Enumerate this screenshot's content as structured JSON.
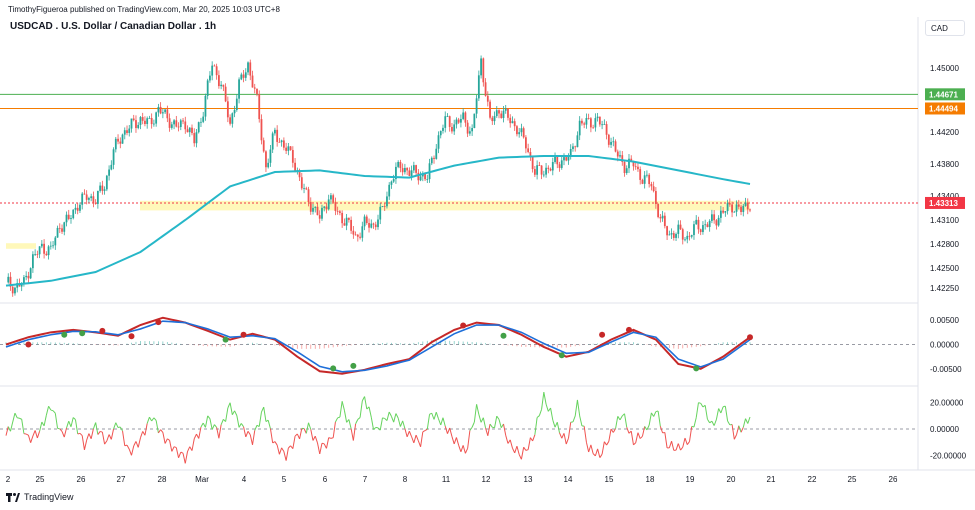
{
  "header": {
    "published_line": "TimothyFigueroa published on TradingView.com, Mar 20, 2025 10:03 UTC+8",
    "symbol_title": "USDCAD . U.S. Dollar / Canadian Dollar . 1h",
    "currency_button": "CAD"
  },
  "footer": {
    "brand": "TradingView"
  },
  "colors": {
    "up": "#26a69a",
    "down": "#ef5350",
    "ma": "#26b7c8",
    "green_level": "#4caf50",
    "orange_level": "#f57c00",
    "last_price": "#f23645",
    "osc_fast": "#c62828",
    "osc_slow": "#1e6fd9",
    "osc_cross_up": "#43a047",
    "osc_mid_hist_pos": "#26a69a",
    "osc_mid_hist_neg": "#ef5350"
  },
  "chart_data": [
    {
      "type": "candlestick",
      "title": "USDCAD . U.S. Dollar / Canadian Dollar . 1h",
      "x_ticks": [
        "2",
        "25",
        "26",
        "27",
        "28",
        "Mar",
        "4",
        "5",
        "6",
        "7",
        "8",
        "11",
        "12",
        "13",
        "14",
        "15",
        "18",
        "19",
        "20",
        "21",
        "22",
        "25",
        "26"
      ],
      "y_ticks": [
        "1.45000",
        "1.44200",
        "1.43800",
        "1.43400",
        "1.43100",
        "1.42800",
        "1.42500",
        "1.42250"
      ],
      "ylim": [
        1.421,
        1.4535
      ],
      "price_levels": [
        {
          "label": "1.44671",
          "value": 1.44671,
          "color": "#4caf50"
        },
        {
          "label": "1.44494",
          "value": 1.44494,
          "color": "#f57c00"
        },
        {
          "label": "1.43313",
          "value": 1.43313,
          "color": "#f23645"
        }
      ],
      "support_zone": [
        1.4322,
        1.4334
      ],
      "pattern_zone": [
        1.4274,
        1.4281
      ],
      "close_path": [
        [
          0,
          1.4232
        ],
        [
          4,
          1.4226
        ],
        [
          8,
          1.4231
        ],
        [
          12,
          1.4262
        ],
        [
          16,
          1.4276
        ],
        [
          20,
          1.4272
        ],
        [
          24,
          1.4303
        ],
        [
          28,
          1.431
        ],
        [
          32,
          1.433
        ],
        [
          36,
          1.4339
        ],
        [
          40,
          1.4336
        ],
        [
          44,
          1.4353
        ],
        [
          48,
          1.4396
        ],
        [
          52,
          1.4418
        ],
        [
          56,
          1.4428
        ],
        [
          60,
          1.4436
        ],
        [
          64,
          1.443
        ],
        [
          68,
          1.4448
        ],
        [
          72,
          1.4438
        ],
        [
          76,
          1.4426
        ],
        [
          80,
          1.4432
        ],
        [
          84,
          1.4408
        ],
        [
          88,
          1.4448
        ],
        [
          92,
          1.4505
        ],
        [
          96,
          1.448
        ],
        [
          100,
          1.443
        ],
        [
          104,
          1.4478
        ],
        [
          108,
          1.4505
        ],
        [
          112,
          1.4458
        ],
        [
          116,
          1.4375
        ],
        [
          120,
          1.442
        ],
        [
          124,
          1.4402
        ],
        [
          128,
          1.4388
        ],
        [
          132,
          1.4352
        ],
        [
          136,
          1.433
        ],
        [
          140,
          1.4312
        ],
        [
          144,
          1.434
        ],
        [
          148,
          1.4318
        ],
        [
          152,
          1.4308
        ],
        [
          156,
          1.4288
        ],
        [
          160,
          1.4305
        ],
        [
          164,
          1.4304
        ],
        [
          168,
          1.4322
        ],
        [
          172,
          1.4362
        ],
        [
          176,
          1.4378
        ],
        [
          180,
          1.437
        ],
        [
          184,
          1.4368
        ],
        [
          188,
          1.4362
        ],
        [
          192,
          1.4405
        ],
        [
          196,
          1.4435
        ],
        [
          200,
          1.4428
        ],
        [
          204,
          1.4438
        ],
        [
          208,
          1.4418
        ],
        [
          212,
          1.451
        ],
        [
          216,
          1.4432
        ],
        [
          220,
          1.4448
        ],
        [
          224,
          1.4438
        ],
        [
          228,
          1.4425
        ],
        [
          232,
          1.4405
        ],
        [
          236,
          1.437
        ],
        [
          240,
          1.4372
        ],
        [
          244,
          1.4378
        ],
        [
          248,
          1.4385
        ],
        [
          252,
          1.439
        ],
        [
          256,
          1.443
        ],
        [
          260,
          1.4432
        ],
        [
          264,
          1.4435
        ],
        [
          268,
          1.442
        ],
        [
          272,
          1.4395
        ],
        [
          276,
          1.4378
        ],
        [
          280,
          1.438
        ],
        [
          284,
          1.4362
        ],
        [
          288,
          1.4355
        ],
        [
          292,
          1.431
        ],
        [
          296,
          1.4292
        ],
        [
          300,
          1.4295
        ],
        [
          304,
          1.4288
        ],
        [
          308,
          1.4302
        ],
        [
          312,
          1.4303
        ],
        [
          316,
          1.431
        ],
        [
          320,
          1.432
        ],
        [
          324,
          1.4328
        ],
        [
          328,
          1.4322
        ],
        [
          332,
          1.4331
        ]
      ],
      "ma_path": [
        [
          0,
          1.4228
        ],
        [
          20,
          1.4234
        ],
        [
          40,
          1.4245
        ],
        [
          60,
          1.427
        ],
        [
          80,
          1.431
        ],
        [
          100,
          1.4352
        ],
        [
          120,
          1.437
        ],
        [
          140,
          1.4372
        ],
        [
          160,
          1.4365
        ],
        [
          180,
          1.4363
        ],
        [
          200,
          1.4378
        ],
        [
          220,
          1.4388
        ],
        [
          240,
          1.439
        ],
        [
          260,
          1.439
        ],
        [
          280,
          1.4383
        ],
        [
          300,
          1.4372
        ],
        [
          320,
          1.4361
        ],
        [
          332,
          1.4355
        ]
      ]
    },
    {
      "type": "line",
      "y_ticks": [
        "0.00500",
        "0.00000",
        "-0.00500"
      ],
      "ylim": [
        -0.0075,
        0.0075
      ],
      "zero_line": 0,
      "series": [
        {
          "role": "fast",
          "values": [
            [
              0,
              0.0
            ],
            [
              10,
              0.0015
            ],
            [
              20,
              0.0025
            ],
            [
              30,
              0.003
            ],
            [
              40,
              0.0025
            ],
            [
              50,
              0.0018
            ],
            [
              60,
              0.004
            ],
            [
              70,
              0.0055
            ],
            [
              80,
              0.0045
            ],
            [
              90,
              0.0028
            ],
            [
              100,
              0.001
            ],
            [
              110,
              0.0022
            ],
            [
              120,
              0.001
            ],
            [
              130,
              -0.0025
            ],
            [
              140,
              -0.0055
            ],
            [
              150,
              -0.006
            ],
            [
              160,
              -0.0052
            ],
            [
              170,
              -0.004
            ],
            [
              180,
              -0.003
            ],
            [
              190,
              0.0005
            ],
            [
              200,
              0.003
            ],
            [
              210,
              0.0045
            ],
            [
              220,
              0.004
            ],
            [
              230,
              0.002
            ],
            [
              240,
              -0.0005
            ],
            [
              250,
              -0.0025
            ],
            [
              260,
              -0.0015
            ],
            [
              270,
              0.001
            ],
            [
              280,
              0.003
            ],
            [
              290,
              0.001
            ],
            [
              300,
              -0.004
            ],
            [
              310,
              -0.005
            ],
            [
              320,
              -0.0025
            ],
            [
              332,
              0.0015
            ]
          ]
        },
        {
          "role": "slow",
          "values": [
            [
              0,
              -0.0005
            ],
            [
              10,
              0.001
            ],
            [
              20,
              0.002
            ],
            [
              30,
              0.0027
            ],
            [
              40,
              0.0026
            ],
            [
              50,
              0.002
            ],
            [
              60,
              0.0032
            ],
            [
              70,
              0.0048
            ],
            [
              80,
              0.0045
            ],
            [
              90,
              0.0032
            ],
            [
              100,
              0.0015
            ],
            [
              110,
              0.0018
            ],
            [
              120,
              0.0012
            ],
            [
              130,
              -0.0015
            ],
            [
              140,
              -0.0045
            ],
            [
              150,
              -0.0056
            ],
            [
              160,
              -0.0053
            ],
            [
              170,
              -0.0044
            ],
            [
              180,
              -0.0032
            ],
            [
              190,
              -0.0005
            ],
            [
              200,
              0.0022
            ],
            [
              210,
              0.004
            ],
            [
              220,
              0.004
            ],
            [
              230,
              0.0025
            ],
            [
              240,
              0.0002
            ],
            [
              250,
              -0.0018
            ],
            [
              260,
              -0.0016
            ],
            [
              270,
              0.0005
            ],
            [
              280,
              0.0025
            ],
            [
              290,
              0.0015
            ],
            [
              300,
              -0.003
            ],
            [
              310,
              -0.0046
            ],
            [
              320,
              -0.003
            ],
            [
              332,
              0.001
            ]
          ]
        }
      ],
      "cross_markers": [
        {
          "x": 10,
          "y": 0.0,
          "kind": "down"
        },
        {
          "x": 26,
          "y": 0.002,
          "kind": "up"
        },
        {
          "x": 34,
          "y": 0.0023,
          "kind": "up"
        },
        {
          "x": 43,
          "y": 0.0028,
          "kind": "down"
        },
        {
          "x": 56,
          "y": 0.0017,
          "kind": "down"
        },
        {
          "x": 68,
          "y": 0.0046,
          "kind": "down"
        },
        {
          "x": 98,
          "y": 0.001,
          "kind": "up"
        },
        {
          "x": 106,
          "y": 0.002,
          "kind": "down"
        },
        {
          "x": 146,
          "y": -0.0049,
          "kind": "up"
        },
        {
          "x": 155,
          "y": -0.0044,
          "kind": "up"
        },
        {
          "x": 204,
          "y": 0.0039,
          "kind": "down"
        },
        {
          "x": 222,
          "y": 0.0018,
          "kind": "up"
        },
        {
          "x": 248,
          "y": -0.0022,
          "kind": "up"
        },
        {
          "x": 266,
          "y": 0.002,
          "kind": "down"
        },
        {
          "x": 278,
          "y": 0.003,
          "kind": "down"
        },
        {
          "x": 308,
          "y": -0.0049,
          "kind": "up"
        },
        {
          "x": 332,
          "y": 0.0015,
          "kind": "down"
        }
      ]
    },
    {
      "type": "line",
      "y_ticks": [
        "20.00000",
        "0.00000",
        "-20.00000"
      ],
      "ylim": [
        -28,
        28
      ],
      "zero_line": 0,
      "series": [
        {
          "role": "momentum",
          "values": [
            [
              0,
              -5
            ],
            [
              5,
              12
            ],
            [
              10,
              -8
            ],
            [
              15,
              -2
            ],
            [
              20,
              18
            ],
            [
              25,
              -5
            ],
            [
              30,
              8
            ],
            [
              35,
              -12
            ],
            [
              40,
              2
            ],
            [
              45,
              -10
            ],
            [
              50,
              5
            ],
            [
              55,
              -18
            ],
            [
              60,
              -8
            ],
            [
              65,
              10
            ],
            [
              70,
              -5
            ],
            [
              75,
              -15
            ],
            [
              80,
              -22
            ],
            [
              85,
              -6
            ],
            [
              90,
              8
            ],
            [
              95,
              -3
            ],
            [
              100,
              18
            ],
            [
              105,
              2
            ],
            [
              110,
              -8
            ],
            [
              115,
              15
            ],
            [
              120,
              -12
            ],
            [
              125,
              -20
            ],
            [
              130,
              -5
            ],
            [
              135,
              2
            ],
            [
              140,
              -15
            ],
            [
              145,
              -8
            ],
            [
              150,
              18
            ],
            [
              155,
              -5
            ],
            [
              160,
              24
            ],
            [
              165,
              -2
            ],
            [
              170,
              10
            ],
            [
              175,
              8
            ],
            [
              180,
              -5
            ],
            [
              185,
              -10
            ],
            [
              190,
              12
            ],
            [
              195,
              5
            ],
            [
              200,
              -8
            ],
            [
              205,
              -18
            ],
            [
              210,
              15
            ],
            [
              215,
              -2
            ],
            [
              220,
              8
            ],
            [
              225,
              -12
            ],
            [
              230,
              -20
            ],
            [
              235,
              -8
            ],
            [
              240,
              24
            ],
            [
              245,
              4
            ],
            [
              250,
              -10
            ],
            [
              255,
              18
            ],
            [
              260,
              -15
            ],
            [
              265,
              -20
            ],
            [
              270,
              -4
            ],
            [
              275,
              12
            ],
            [
              280,
              -10
            ],
            [
              285,
              -2
            ],
            [
              290,
              15
            ],
            [
              295,
              -12
            ],
            [
              300,
              -15
            ],
            [
              305,
              -8
            ],
            [
              310,
              22
            ],
            [
              315,
              2
            ],
            [
              320,
              18
            ],
            [
              325,
              -5
            ],
            [
              330,
              4
            ],
            [
              332,
              10
            ]
          ]
        }
      ]
    }
  ]
}
